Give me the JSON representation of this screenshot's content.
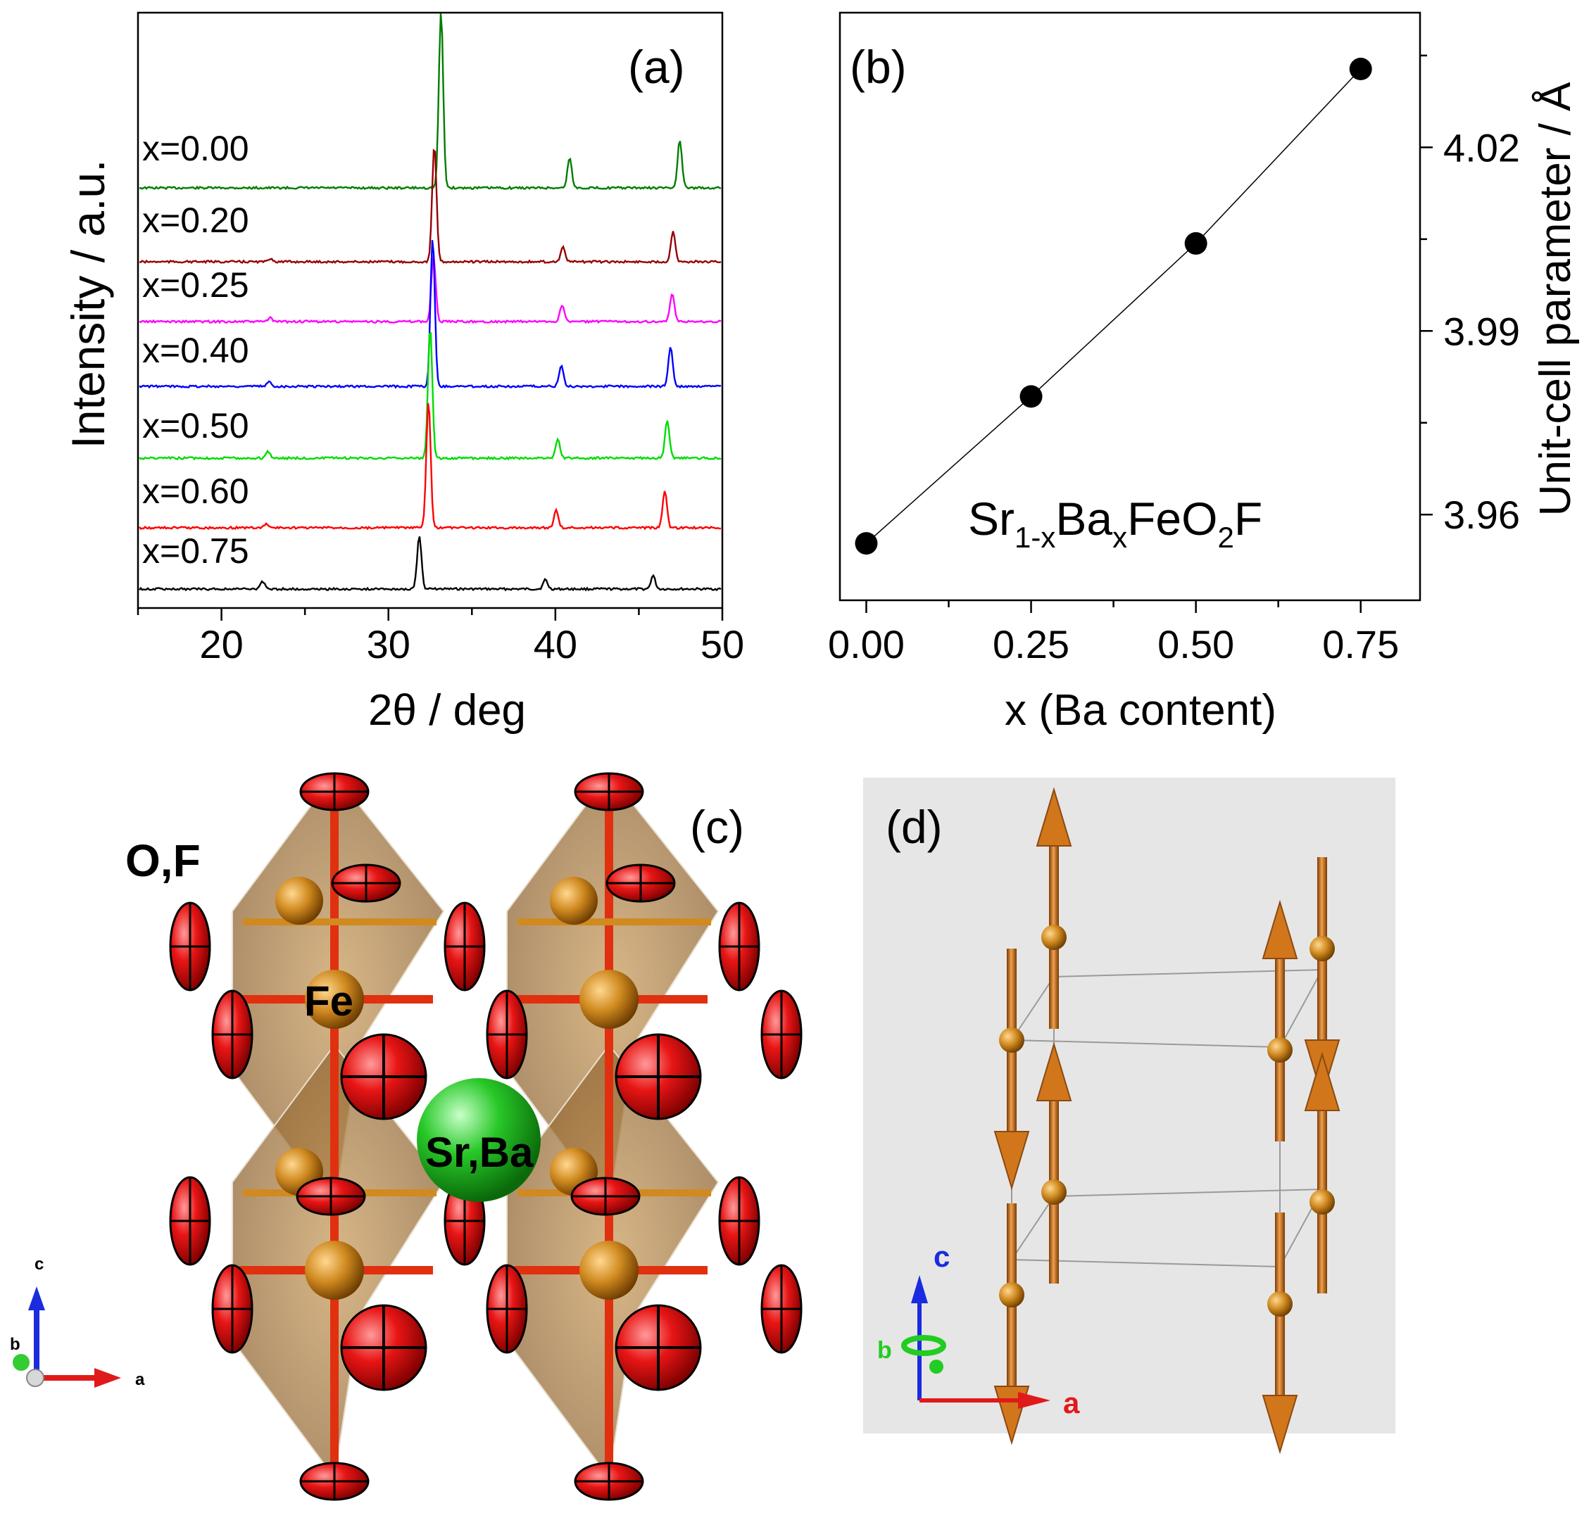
{
  "chart_data": [
    {
      "panel": "(a)",
      "type": "line",
      "xlabel": "2θ / deg",
      "ylabel": "Intensity / a.u.",
      "xlim": [
        15,
        50
      ],
      "xticks": [
        20,
        30,
        40,
        50
      ],
      "xtick_labels": [
        "20",
        "30",
        "40",
        "50"
      ],
      "series": [
        {
          "name": "x=0.00",
          "color": "#007d00",
          "peaks": [
            [
              33.15,
              1.0
            ],
            [
              40.85,
              0.17
            ],
            [
              47.45,
              0.27
            ]
          ]
        },
        {
          "name": "x=0.20",
          "color": "#960000",
          "peaks": [
            [
              22.95,
              0.03
            ],
            [
              32.75,
              1.0
            ],
            [
              40.45,
              0.13
            ],
            [
              47.05,
              0.27
            ]
          ]
        },
        {
          "name": "x=0.25",
          "color": "#ff00ff",
          "peaks": [
            [
              22.9,
              0.03
            ],
            [
              32.7,
              0.55
            ],
            [
              40.4,
              0.14
            ],
            [
              47.0,
              0.23
            ]
          ]
        },
        {
          "name": "x=0.40",
          "color": "#0000ff",
          "peaks": [
            [
              22.85,
              0.03
            ],
            [
              32.65,
              1.0
            ],
            [
              40.35,
              0.14
            ],
            [
              46.9,
              0.27
            ]
          ]
        },
        {
          "name": "x=0.50",
          "color": "#00dd00",
          "peaks": [
            [
              22.8,
              0.05
            ],
            [
              32.5,
              1.0
            ],
            [
              40.15,
              0.14
            ],
            [
              46.7,
              0.29
            ]
          ]
        },
        {
          "name": "x=0.60",
          "color": "#ff0000",
          "peaks": [
            [
              22.7,
              0.03
            ],
            [
              32.4,
              1.0
            ],
            [
              40.05,
              0.14
            ],
            [
              46.55,
              0.29
            ]
          ]
        },
        {
          "name": "x=0.75",
          "color": "#000000",
          "peaks": [
            [
              22.45,
              0.06
            ],
            [
              31.85,
              0.4
            ],
            [
              39.4,
              0.07
            ],
            [
              45.85,
              0.1
            ]
          ]
        }
      ]
    },
    {
      "panel": "(b)",
      "type": "line",
      "xlabel": "x (Ba content)",
      "ylabel": "Unit-cell parameter / Å",
      "xlim": [
        -0.04,
        0.84
      ],
      "ylim": [
        3.946,
        4.042
      ],
      "xticks": [
        0.0,
        0.25,
        0.5,
        0.75
      ],
      "xtick_labels": [
        "0.00",
        "0.25",
        "0.50",
        "0.75"
      ],
      "yticks": [
        3.96,
        3.99,
        4.02
      ],
      "ytick_labels": [
        "3.96",
        "3.99",
        "4.02"
      ],
      "x": [
        0.0,
        0.25,
        0.5,
        0.75
      ],
      "y": [
        3.9553,
        3.9793,
        4.0043,
        4.0328
      ],
      "annotation": {
        "base": "Sr",
        "sub1": "1-x",
        "mid": "Ba",
        "sub2": "x",
        "tail": "FeO",
        "sub3": "2",
        "end": "F"
      }
    }
  ],
  "panel_c": {
    "label": "(c)",
    "atom_labels": [
      "O,F",
      "Fe",
      "Sr,Ba"
    ],
    "axis_labels": [
      "c",
      "b",
      "a"
    ],
    "colors": {
      "oxygen": "#e01010",
      "iron": "#c88a20",
      "strontium": "#20b020",
      "octahedron": "#a08860"
    }
  },
  "panel_d": {
    "label": "(d)",
    "axis_labels": [
      "c",
      "b",
      "a"
    ],
    "colors": {
      "background": "#e6e6e6",
      "spin": "#d2761c"
    }
  }
}
